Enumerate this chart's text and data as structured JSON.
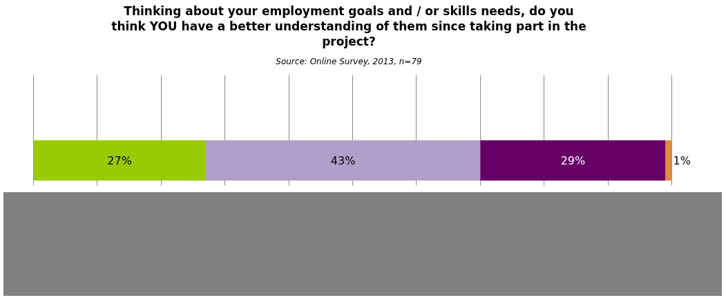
{
  "chart_data": {
    "type": "bar",
    "orientation": "horizontal",
    "stacked": true,
    "title": "Thinking about your employment goals and / or skills needs, do you\nthink YOU have a better understanding of them since taking part in the\nproject?",
    "subtitle": "Source: Online Survey, 2013, n=79",
    "categories": [
      null
    ],
    "series": [
      {
        "color": "#99cc00",
        "values": [
          27
        ],
        "value_labels": [
          "27%"
        ]
      },
      {
        "color": "#b09fc8",
        "values": [
          43
        ],
        "value_labels": [
          "43%"
        ]
      },
      {
        "color": "#660066",
        "values": [
          29
        ],
        "value_labels": [
          "29%"
        ]
      },
      {
        "color": "#e08a3c",
        "values": [
          1
        ],
        "value_labels": [
          "1%"
        ]
      }
    ],
    "grid": "x",
    "tick_labels": false
  }
}
